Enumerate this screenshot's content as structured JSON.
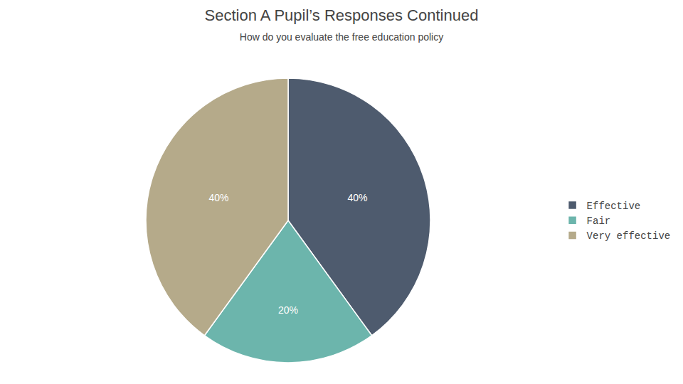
{
  "chart_data": {
    "type": "pie",
    "title": "Section A Pupil’s Responses Continued",
    "subtitle": "How do you evaluate the free education policy",
    "categories": [
      "Effective",
      "Fair",
      "Very effective"
    ],
    "values": [
      40,
      20,
      40
    ],
    "value_labels": [
      "40%",
      "20%",
      "40%"
    ],
    "colors": [
      "#4e5b6e",
      "#6cb5ac",
      "#b5aa8a"
    ],
    "data_labels": true,
    "legend": "right"
  }
}
